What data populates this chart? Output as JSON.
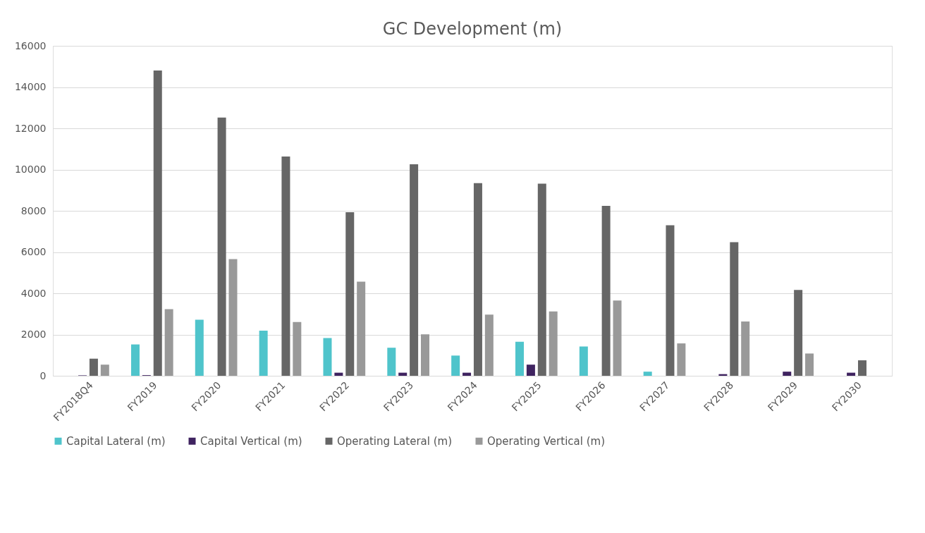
{
  "chart_data": {
    "type": "bar",
    "title": "GC Development (m)",
    "categories": [
      "FY2018Q4",
      "FY2019",
      "FY2020",
      "FY2021",
      "FY2022",
      "FY2023",
      "FY2024",
      "FY2025",
      "FY2026",
      "FY2027",
      "FY2028",
      "FY2029",
      "FY2030"
    ],
    "series": [
      {
        "name": "Capital Lateral (m)",
        "color": "#4fc4cb",
        "values": [
          0,
          1520,
          2720,
          2190,
          1830,
          1360,
          980,
          1650,
          1420,
          200,
          0,
          0,
          0
        ]
      },
      {
        "name": "Capital Vertical (m)",
        "color": "#3f2360",
        "values": [
          20,
          30,
          0,
          0,
          150,
          150,
          150,
          540,
          0,
          0,
          80,
          200,
          150
        ]
      },
      {
        "name": "Operating Lateral (m)",
        "color": "#666666",
        "values": [
          830,
          14800,
          12520,
          10630,
          7930,
          10260,
          9340,
          9320,
          8240,
          7300,
          6480,
          4160,
          750
        ]
      },
      {
        "name": "Operating Vertical (m)",
        "color": "#999999",
        "values": [
          540,
          3230,
          5660,
          2610,
          4560,
          2010,
          2970,
          3120,
          3650,
          1570,
          2630,
          1080,
          0
        ]
      }
    ],
    "ylim": [
      0,
      16000
    ],
    "yticks": [
      0,
      2000,
      4000,
      6000,
      8000,
      10000,
      12000,
      14000,
      16000
    ],
    "grid": "y",
    "legend": "bottom"
  }
}
